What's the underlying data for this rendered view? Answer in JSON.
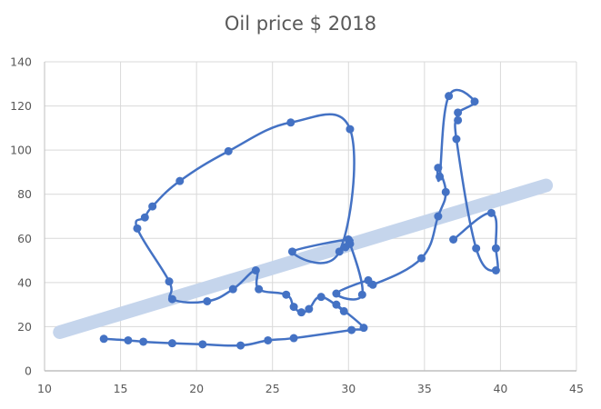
{
  "chart_data": {
    "type": "scatter",
    "title": "Oil price $ 2018",
    "xlabel": "",
    "ylabel": "",
    "xlim": [
      10,
      45
    ],
    "ylim": [
      0,
      140
    ],
    "x_ticks": [
      10,
      15,
      20,
      25,
      30,
      35,
      40,
      45
    ],
    "y_ticks": [
      0,
      20,
      40,
      60,
      80,
      100,
      120,
      140
    ],
    "grid": true,
    "legend": null,
    "colors": {
      "series": "#4472C4",
      "trendline": "#C5D5EC",
      "grid": "#D9D9D9",
      "axis": "#BFBFBF",
      "text": "#595959"
    },
    "series": [
      {
        "name": "Oil price $ 2018",
        "style": "smoothed line with markers",
        "points": [
          [
            13.9,
            14.5
          ],
          [
            15.5,
            13.8
          ],
          [
            16.5,
            13.2
          ],
          [
            18.4,
            12.5
          ],
          [
            20.4,
            12.0
          ],
          [
            22.9,
            11.5
          ],
          [
            24.7,
            13.8
          ],
          [
            26.4,
            14.8
          ],
          [
            30.2,
            18.5
          ],
          [
            31.0,
            19.5
          ],
          [
            29.2,
            30.0
          ],
          [
            29.7,
            27.0
          ],
          [
            28.2,
            33.5
          ],
          [
            27.4,
            28.0
          ],
          [
            26.9,
            26.5
          ],
          [
            26.4,
            29.0
          ],
          [
            25.9,
            34.5
          ],
          [
            24.1,
            37.0
          ],
          [
            23.9,
            45.5
          ],
          [
            22.4,
            37.0
          ],
          [
            20.7,
            31.5
          ],
          [
            18.4,
            32.5
          ],
          [
            18.2,
            40.5
          ],
          [
            16.1,
            64.5
          ],
          [
            16.6,
            69.5
          ],
          [
            17.1,
            74.5
          ],
          [
            18.9,
            86.0
          ],
          [
            22.1,
            99.5
          ],
          [
            26.2,
            112.5
          ],
          [
            30.1,
            109.5
          ],
          [
            29.4,
            54.0
          ],
          [
            26.3,
            54.0
          ],
          [
            30.0,
            59.5
          ],
          [
            29.8,
            56.0
          ],
          [
            30.1,
            57.5
          ],
          [
            30.9,
            34.5
          ],
          [
            29.2,
            35.0
          ],
          [
            31.3,
            41.0
          ],
          [
            31.6,
            39.0
          ],
          [
            34.8,
            51.0
          ],
          [
            35.9,
            70.0
          ],
          [
            36.4,
            81.0
          ],
          [
            35.9,
            92.0
          ],
          [
            36.0,
            88.0
          ],
          [
            36.6,
            124.5
          ],
          [
            38.3,
            122.0
          ],
          [
            37.2,
            117.0
          ],
          [
            37.2,
            113.5
          ],
          [
            37.1,
            105.0
          ],
          [
            38.4,
            55.5
          ],
          [
            39.7,
            45.5
          ],
          [
            39.7,
            55.5
          ],
          [
            39.4,
            71.5
          ],
          [
            36.9,
            59.5
          ]
        ]
      }
    ],
    "trendline": {
      "type": "linear",
      "from": [
        11,
        17.5
      ],
      "to": [
        43,
        84
      ]
    }
  }
}
